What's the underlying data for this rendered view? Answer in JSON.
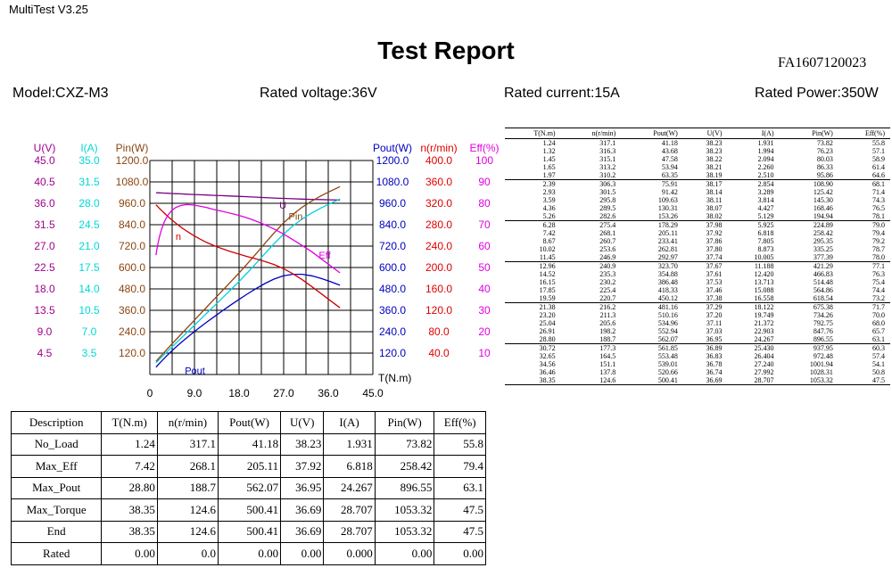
{
  "app": {
    "title": "MultiTest V3.25"
  },
  "report": {
    "title": "Test Report",
    "id": "FA1607120023",
    "model": "Model:CXZ-M3",
    "rated_voltage": "Rated voltage:36V",
    "rated_current": "Rated current:15A",
    "rated_power": "Rated Power:350W"
  },
  "chart_data": {
    "type": "line",
    "xlabel": "T(N.m)",
    "x_ticks": [
      "0",
      "9.0",
      "18.0",
      "27.0",
      "36.0",
      "45.0"
    ],
    "xlim": [
      0,
      45
    ],
    "axes": [
      {
        "name": "U(V)",
        "color": "#a0008c",
        "ticks": [
          "45.0",
          "40.5",
          "36.0",
          "31.5",
          "27.0",
          "22.5",
          "18.0",
          "13.5",
          "9.0",
          "4.5"
        ]
      },
      {
        "name": "I(A)",
        "color": "#00d8d8",
        "ticks": [
          "35.0",
          "31.5",
          "28.0",
          "24.5",
          "21.0",
          "17.5",
          "14.0",
          "10.5",
          "7.0",
          "3.5"
        ]
      },
      {
        "name": "Pin(W)",
        "color": "#8b4513",
        "ticks": [
          "1200.0",
          "1080.0",
          "960.0",
          "840.0",
          "720.0",
          "600.0",
          "480.0",
          "360.0",
          "240.0",
          "120.0"
        ]
      },
      {
        "name": "Pout(W)",
        "color": "#0000c0",
        "ticks": [
          "1200.0",
          "1080.0",
          "960.0",
          "840.0",
          "720.0",
          "600.0",
          "480.0",
          "360.0",
          "240.0",
          "120.0"
        ]
      },
      {
        "name": "n(r/min)",
        "color": "#e00000",
        "ticks": [
          "400.0",
          "360.0",
          "320.0",
          "280.0",
          "240.0",
          "200.0",
          "160.0",
          "120.0",
          "80.0",
          "40.0"
        ]
      },
      {
        "name": "Eff(%)",
        "color": "#e000e0",
        "ticks": [
          "100",
          "90",
          "80",
          "70",
          "60",
          "50",
          "40",
          "30",
          "20",
          "10"
        ]
      }
    ],
    "series": [
      {
        "name": "U",
        "color": "#7a0080",
        "axis_max": 45
      },
      {
        "name": "I",
        "color": "#00d0e0",
        "axis_max": 35
      },
      {
        "name": "Pin",
        "color": "#8b4513",
        "axis_max": 1200
      },
      {
        "name": "Pout",
        "color": "#0000c0",
        "axis_max": 1200
      },
      {
        "name": "n",
        "color": "#d00000",
        "axis_max": 400
      },
      {
        "name": "Eff",
        "color": "#e000e0",
        "axis_max": 100
      }
    ],
    "curve_labels": [
      "U",
      "Pin",
      "n",
      "Eff",
      "Pout"
    ],
    "x": [
      1.24,
      1.32,
      1.45,
      1.65,
      1.97,
      2.39,
      2.93,
      3.59,
      4.36,
      5.26,
      6.28,
      7.42,
      8.67,
      10.02,
      11.45,
      12.96,
      14.52,
      16.15,
      17.85,
      19.59,
      21.38,
      23.2,
      25.04,
      26.91,
      28.8,
      30.72,
      32.65,
      34.56,
      36.46,
      38.35
    ],
    "U": [
      38.23,
      38.23,
      38.22,
      38.21,
      38.19,
      38.17,
      38.14,
      38.11,
      38.07,
      38.02,
      37.98,
      37.92,
      37.86,
      37.8,
      37.74,
      37.67,
      37.61,
      37.53,
      37.46,
      37.38,
      37.29,
      37.2,
      37.11,
      37.03,
      36.95,
      36.89,
      36.83,
      36.78,
      36.74,
      36.69
    ],
    "I": [
      1.931,
      1.994,
      2.094,
      2.26,
      2.51,
      2.854,
      3.289,
      3.814,
      4.427,
      5.129,
      5.925,
      6.818,
      7.805,
      8.873,
      10.005,
      11.188,
      12.42,
      13.713,
      15.088,
      16.558,
      18.122,
      19.749,
      21.372,
      22.903,
      24.267,
      25.43,
      26.404,
      27.24,
      27.992,
      28.707
    ],
    "Pin": [
      73.82,
      76.23,
      80.03,
      86.33,
      95.86,
      108.9,
      125.42,
      145.3,
      168.46,
      194.94,
      224.89,
      258.42,
      295.35,
      335.25,
      377.39,
      421.29,
      466.83,
      514.48,
      564.86,
      618.54,
      675.38,
      734.26,
      792.75,
      847.76,
      896.55,
      937.95,
      972.48,
      1001.94,
      1028.31,
      1053.32
    ],
    "Pout": [
      41.18,
      43.68,
      47.58,
      53.94,
      63.35,
      75.91,
      91.42,
      109.63,
      130.31,
      153.26,
      178.29,
      205.11,
      233.41,
      262.81,
      292.97,
      323.7,
      354.88,
      386.48,
      418.33,
      450.12,
      481.16,
      510.16,
      534.96,
      552.94,
      562.07,
      561.85,
      553.48,
      539.01,
      520.66,
      500.41
    ],
    "n": [
      317.1,
      316.3,
      315.1,
      313.2,
      310.2,
      306.3,
      301.5,
      295.8,
      289.5,
      282.6,
      275.4,
      268.1,
      260.7,
      253.6,
      246.9,
      240.9,
      235.3,
      230.2,
      225.4,
      220.7,
      216.2,
      211.3,
      205.6,
      198.2,
      188.7,
      177.3,
      164.5,
      151.1,
      137.8,
      124.6
    ],
    "Eff": [
      55.8,
      57.1,
      58.9,
      61.4,
      64.6,
      68.1,
      71.4,
      74.3,
      76.5,
      78.1,
      79.0,
      79.4,
      79.2,
      78.7,
      78.0,
      77.1,
      76.3,
      75.4,
      74.4,
      73.2,
      71.7,
      70.0,
      68.0,
      65.7,
      63.1,
      60.3,
      57.4,
      54.1,
      50.8,
      47.5
    ]
  },
  "summary": {
    "headers": [
      "Description",
      "T(N.m)",
      "n(r/min)",
      "Pout(W)",
      "U(V)",
      "I(A)",
      "Pin(W)",
      "Eff(%)"
    ],
    "rows": [
      [
        "No_Load",
        "1.24",
        "317.1",
        "41.18",
        "38.23",
        "1.931",
        "73.82",
        "55.8"
      ],
      [
        "Max_Eff",
        "7.42",
        "268.1",
        "205.11",
        "37.92",
        "6.818",
        "258.42",
        "79.4"
      ],
      [
        "Max_Pout",
        "28.80",
        "188.7",
        "562.07",
        "36.95",
        "24.267",
        "896.55",
        "63.1"
      ],
      [
        "Max_Torque",
        "38.35",
        "124.6",
        "500.41",
        "36.69",
        "28.707",
        "1053.32",
        "47.5"
      ],
      [
        "End",
        "38.35",
        "124.6",
        "500.41",
        "36.69",
        "28.707",
        "1053.32",
        "47.5"
      ],
      [
        "Rated",
        "0.00",
        "0.0",
        "0.00",
        "0.00",
        "0.000",
        "0.00",
        "0.00"
      ]
    ]
  },
  "detail": {
    "headers": [
      "T(N.m)",
      "n(r/min)",
      "Pout(W)",
      "U(V)",
      "I(A)",
      "Pin(W)",
      "Eff(%)"
    ],
    "rows": [
      [
        "1.24",
        "317.1",
        "41.18",
        "38.23",
        "1.931",
        "73.82",
        "55.8"
      ],
      [
        "1.32",
        "316.3",
        "43.68",
        "38.23",
        "1.994",
        "76.23",
        "57.1"
      ],
      [
        "1.45",
        "315.1",
        "47.58",
        "38.22",
        "2.094",
        "80.03",
        "58.9"
      ],
      [
        "1.65",
        "313.2",
        "53.94",
        "38.21",
        "2.260",
        "86.33",
        "61.4"
      ],
      [
        "1.97",
        "310.2",
        "63.35",
        "38.19",
        "2.510",
        "95.86",
        "64.6"
      ],
      [
        "2.39",
        "306.3",
        "75.91",
        "38.17",
        "2.854",
        "108.90",
        "68.1"
      ],
      [
        "2.93",
        "301.5",
        "91.42",
        "38.14",
        "3.289",
        "125.42",
        "71.4"
      ],
      [
        "3.59",
        "295.8",
        "109.63",
        "38.11",
        "3.814",
        "145.30",
        "74.3"
      ],
      [
        "4.36",
        "289.5",
        "130.31",
        "38.07",
        "4.427",
        "168.46",
        "76.5"
      ],
      [
        "5.26",
        "282.6",
        "153.26",
        "38.02",
        "5.129",
        "194.94",
        "78.1"
      ],
      [
        "6.28",
        "275.4",
        "178.29",
        "37.98",
        "5.925",
        "224.89",
        "79.0"
      ],
      [
        "7.42",
        "268.1",
        "205.11",
        "37.92",
        "6.818",
        "258.42",
        "79.4"
      ],
      [
        "8.67",
        "260.7",
        "233.41",
        "37.86",
        "7.805",
        "295.35",
        "79.2"
      ],
      [
        "10.02",
        "253.6",
        "262.81",
        "37.80",
        "8.873",
        "335.25",
        "78.7"
      ],
      [
        "11.45",
        "246.9",
        "292.97",
        "37.74",
        "10.005",
        "377.39",
        "78.0"
      ],
      [
        "12.96",
        "240.9",
        "323.70",
        "37.67",
        "11.188",
        "421.29",
        "77.1"
      ],
      [
        "14.52",
        "235.3",
        "354.88",
        "37.61",
        "12.420",
        "466.83",
        "76.3"
      ],
      [
        "16.15",
        "230.2",
        "386.48",
        "37.53",
        "13.713",
        "514.48",
        "75.4"
      ],
      [
        "17.85",
        "225.4",
        "418.33",
        "37.46",
        "15.088",
        "564.86",
        "74.4"
      ],
      [
        "19.59",
        "220.7",
        "450.12",
        "37.38",
        "16.558",
        "618.54",
        "73.2"
      ],
      [
        "21.38",
        "216.2",
        "481.16",
        "37.29",
        "18.122",
        "675.38",
        "71.7"
      ],
      [
        "23.20",
        "211.3",
        "510.16",
        "37.20",
        "19.749",
        "734.26",
        "70.0"
      ],
      [
        "25.04",
        "205.6",
        "534.96",
        "37.11",
        "21.372",
        "792.75",
        "68.0"
      ],
      [
        "26.91",
        "198.2",
        "552.94",
        "37.03",
        "22.903",
        "847.76",
        "65.7"
      ],
      [
        "28.80",
        "188.7",
        "562.07",
        "36.95",
        "24.267",
        "896.55",
        "63.1"
      ],
      [
        "30.72",
        "177.3",
        "561.85",
        "36.89",
        "25.430",
        "937.95",
        "60.3"
      ],
      [
        "32.65",
        "164.5",
        "553.48",
        "36.83",
        "26.404",
        "972.48",
        "57.4"
      ],
      [
        "34.56",
        "151.1",
        "539.01",
        "36.78",
        "27.240",
        "1001.94",
        "54.1"
      ],
      [
        "36.46",
        "137.8",
        "520.66",
        "36.74",
        "27.992",
        "1028.31",
        "50.8"
      ],
      [
        "38.35",
        "124.6",
        "500.41",
        "36.69",
        "28.707",
        "1053.32",
        "47.5"
      ]
    ]
  }
}
